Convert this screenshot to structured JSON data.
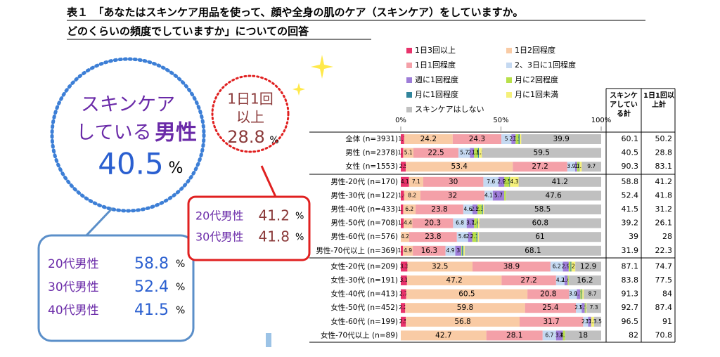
{
  "chart_data": {
    "type": "stacked-bar-h",
    "title": [
      "表１　「あなたはスキンケア用品を使って、顔や全身の肌のケア（スキンケア）をしていますか。",
      "どのくらいの頻度でしていますか」についての回答"
    ],
    "categories": [
      "全体 (n=3931)",
      "男性 (n=2378)",
      "女性 (n=1553)",
      "男性-20代 (n=170)",
      "男性-30代 (n=122)",
      "男性-40代 (n=433)",
      "男性-50代 (n=708)",
      "男性-60代 (n=576)",
      "男性-70代以上 (n=369)",
      "女性-20代 (n=209)",
      "女性-30代 (n=191)",
      "女性-40代 (n=413)",
      "女性-50代 (n=452)",
      "女性-60代 (n=199)",
      "女性-70代以上 (n=89)"
    ],
    "series": [
      {
        "name": "1日3回以上",
        "color": "#e8336b",
        "values": [
          1.7,
          1.2,
          2.5,
          4.1,
          1.6,
          1.2,
          1.4,
          0,
          1.1,
          3.3,
          3.1,
          2.7,
          2.2,
          2.5,
          0
        ]
      },
      {
        "name": "1日2回程度",
        "color": "#f9cba5",
        "values": [
          24.2,
          5.1,
          53.4,
          7.1,
          8.2,
          6.2,
          4.4,
          4.2,
          4.9,
          32.5,
          47.2,
          60.5,
          59.8,
          56.8,
          42.7
        ]
      },
      {
        "name": "1日1回程度",
        "color": "#f4a0a8",
        "values": [
          24.3,
          22.5,
          27.2,
          30.0,
          32.0,
          23.8,
          20.3,
          23.8,
          16.3,
          38.9,
          27.2,
          20.8,
          25.4,
          31.7,
          28.1
        ]
      },
      {
        "name": "2、3日に1回程度",
        "color": "#c5d9f1",
        "values": [
          5.0,
          5.7,
          3.9,
          7.6,
          4.1,
          4.6,
          6.8,
          5.6,
          4.9,
          6.2,
          4.2,
          3.9,
          2.9,
          2.5,
          6.7
        ]
      },
      {
        "name": "週に1回程度",
        "color": "#9e7dd8",
        "values": [
          2.1,
          2.1,
          1.0,
          2.9,
          5.7,
          2.5,
          3.7,
          2.1,
          3.0,
          2.9,
          1.6,
          1.7,
          1.5,
          1.5,
          3.4
        ]
      },
      {
        "name": "月に2回程度",
        "color": "#b8e04a",
        "values": [
          1.5,
          1.9,
          0.9,
          2.5,
          0.8,
          2.3,
          1.6,
          2.1,
          0.4,
          0.9,
          0.5,
          0.7,
          0.4,
          0,
          1.1
        ]
      },
      {
        "name": "月に1回程度",
        "color": "#31859c",
        "values": [
          0.5,
          0.5,
          0.3,
          0.3,
          0,
          0.4,
          0.3,
          0.5,
          0.6,
          0.4,
          0,
          0.3,
          0.1,
          0,
          0
        ]
      },
      {
        "name": "月に1回未満",
        "color": "#f5f07a",
        "values": [
          0.8,
          1.5,
          1.1,
          4.3,
          0,
          0.5,
          0.7,
          0.7,
          0.7,
          2.0,
          0,
          0.7,
          0.4,
          1.5,
          0
        ]
      },
      {
        "name": "スキンケアはしない",
        "color": "#c0c0c0",
        "values": [
          39.9,
          59.5,
          9.7,
          41.2,
          47.6,
          58.5,
          60.8,
          61.0,
          68.1,
          12.9,
          16.2,
          8.7,
          7.3,
          3.5,
          18.0
        ]
      }
    ],
    "xlim": [
      0,
      100
    ],
    "xticks": [
      {
        "value": 0,
        "label": "0%"
      },
      {
        "value": 50,
        "label": "50%"
      },
      {
        "value": 100,
        "label": "100%"
      }
    ],
    "table_headers": [
      "スキンケアしている計",
      "1日1回以上計"
    ],
    "skincare_total": [
      60.1,
      40.5,
      90.3,
      58.8,
      52.4,
      41.5,
      39.2,
      39.0,
      31.9,
      87.1,
      83.8,
      91.3,
      92.7,
      96.5,
      82.0
    ],
    "daily_total": [
      50.2,
      28.8,
      83.1,
      41.2,
      41.8,
      31.2,
      26.1,
      28.0,
      22.3,
      74.7,
      77.5,
      84.0,
      87.4,
      91.0,
      70.8
    ]
  },
  "callouts": {
    "men": {
      "line1": "スキンケア",
      "line2": "している",
      "line3": "男性",
      "value": 40.5,
      "unit": "%"
    },
    "daily": {
      "line1": "1日1回",
      "line2": "以上",
      "value": 28.8,
      "unit": "%"
    },
    "red_box": [
      {
        "label": "20代男性",
        "value": 41.2,
        "unit": "%"
      },
      {
        "label": "30代男性",
        "value": 41.8,
        "unit": "%"
      }
    ],
    "blue_box": [
      {
        "label": "20代男性",
        "value": 58.8,
        "unit": "%"
      },
      {
        "label": "30代男性",
        "value": 52.4,
        "unit": "%"
      },
      {
        "label": "40代男性",
        "value": 41.5,
        "unit": "%"
      }
    ]
  }
}
